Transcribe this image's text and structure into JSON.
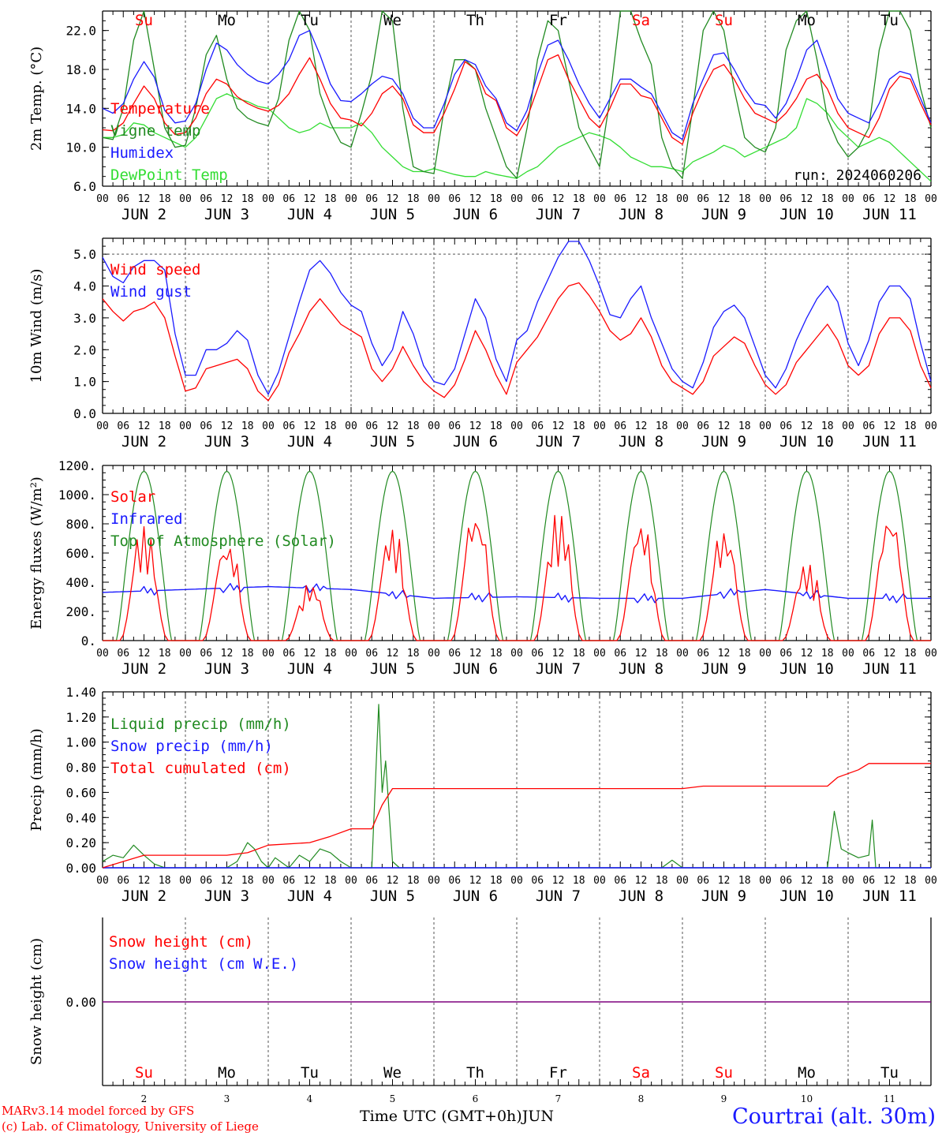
{
  "colors": {
    "red": "#ff0000",
    "green": "#218a21",
    "light_green": "#33dd33",
    "blue": "#1a1aff",
    "purple": "#7f007f",
    "black": "#000000",
    "grid": "#555555"
  },
  "days": [
    {
      "date": "2",
      "dow": "Su",
      "dow_color": "red"
    },
    {
      "date": "3",
      "dow": "Mo",
      "dow_color": "black"
    },
    {
      "date": "4",
      "dow": "Tu",
      "dow_color": "black"
    },
    {
      "date": "5",
      "dow": "We",
      "dow_color": "black"
    },
    {
      "date": "6",
      "dow": "Th",
      "dow_color": "black"
    },
    {
      "date": "7",
      "dow": "Fr",
      "dow_color": "black"
    },
    {
      "date": "8",
      "dow": "Sa",
      "dow_color": "red"
    },
    {
      "date": "9",
      "dow": "Su",
      "dow_color": "red"
    },
    {
      "date": "10",
      "dow": "Mo",
      "dow_color": "black"
    },
    {
      "date": "11",
      "dow": "Tu",
      "dow_color": "black"
    }
  ],
  "month": "JUN",
  "hour_ticks": [
    "00",
    "06",
    "12",
    "18"
  ],
  "footer": {
    "model_line": "MARv3.14 model forced by GFS",
    "credit_line": "(c) Lab. of Climatology, University of Liege",
    "time_axis": "Time UTC (GMT+0h)",
    "month_label": "JUN",
    "station": "Courtrai (alt. 30m)"
  },
  "chart_data": [
    {
      "type": "line",
      "name": "temperature",
      "ylabel": "2m Temp. (°C)",
      "ylim": [
        6,
        24
      ],
      "yticks": [
        "6.0",
        "10.0",
        "14.0",
        "18.0",
        "22.0"
      ],
      "ytick_values": [
        6,
        10,
        14,
        18,
        22
      ],
      "run_label": "run: 2024060206",
      "x_hours": [
        0,
        3,
        6,
        9,
        12,
        15,
        18,
        21,
        24,
        27,
        30,
        33,
        36,
        39,
        42,
        45,
        48,
        51,
        54,
        57,
        60,
        63,
        66,
        69,
        72,
        75,
        78,
        81,
        84,
        87,
        90,
        93,
        96,
        99,
        102,
        105,
        108,
        111,
        114,
        117,
        120,
        123,
        126,
        129,
        132,
        135,
        138,
        141,
        144,
        147,
        150,
        153,
        156,
        159,
        162,
        165,
        168,
        171,
        174,
        177,
        180,
        183,
        186,
        189,
        192,
        195,
        198,
        201,
        204,
        207,
        210,
        213,
        216,
        219,
        222,
        225,
        228,
        231,
        234,
        237,
        240
      ],
      "series": [
        {
          "name": "Temperature",
          "color": "red",
          "values": [
            11.8,
            11.7,
            12.5,
            14.5,
            16.3,
            15.0,
            12.5,
            11.3,
            11.5,
            13.0,
            15.5,
            17.0,
            16.5,
            15.2,
            14.5,
            14.0,
            13.7,
            14.3,
            15.5,
            17.5,
            19.2,
            17.0,
            14.5,
            13.0,
            12.8,
            12.2,
            13.5,
            15.5,
            16.3,
            15.0,
            12.3,
            11.5,
            11.5,
            13.5,
            16.0,
            18.8,
            18.0,
            15.5,
            14.8,
            12.0,
            11.2,
            13.0,
            16.0,
            19.0,
            19.5,
            17.0,
            15.0,
            13.0,
            12.0,
            14.0,
            16.5,
            16.5,
            15.3,
            15.0,
            13.0,
            11.0,
            10.3,
            13.5,
            16.0,
            18.0,
            18.5,
            17.0,
            15.0,
            13.5,
            13.0,
            12.5,
            13.5,
            15.0,
            17.0,
            17.5,
            16.0,
            13.5,
            12.0,
            11.5,
            11.0,
            13.0,
            16.0,
            17.3,
            17.0,
            14.5,
            12.3
          ]
        },
        {
          "name": "Vigne temp",
          "color": "green",
          "values": [
            11.0,
            10.8,
            14.0,
            21.0,
            24.0,
            18.0,
            12.0,
            10.0,
            10.2,
            14.0,
            19.5,
            21.5,
            17.0,
            14.0,
            13.0,
            12.5,
            12.2,
            15.0,
            21.0,
            24.0,
            22.0,
            15.5,
            12.5,
            10.5,
            10.0,
            13.5,
            17.5,
            24.0,
            23.0,
            14.0,
            8.0,
            7.5,
            7.3,
            14.0,
            19.0,
            19.0,
            18.0,
            14.0,
            11.0,
            8.0,
            6.8,
            12.0,
            19.0,
            23.0,
            22.0,
            17.0,
            12.0,
            10.0,
            8.0,
            15.0,
            24.0,
            24.0,
            21.0,
            18.5,
            11.0,
            8.0,
            6.8,
            14.0,
            22.0,
            24.0,
            22.0,
            16.0,
            11.0,
            10.0,
            9.5,
            12.0,
            20.0,
            23.0,
            24.0,
            19.0,
            13.0,
            10.5,
            9.0,
            10.0,
            12.0,
            20.0,
            24.0,
            24.0,
            22.0,
            16.0,
            12.0
          ]
        },
        {
          "name": "Humidex",
          "color": "blue",
          "values": [
            14.0,
            13.5,
            14.5,
            17.0,
            18.8,
            17.2,
            13.8,
            12.5,
            12.7,
            14.5,
            18.0,
            20.7,
            20.0,
            18.5,
            17.5,
            16.8,
            16.5,
            17.5,
            19.0,
            21.5,
            22.0,
            19.5,
            16.5,
            14.8,
            14.7,
            15.5,
            16.5,
            17.3,
            17.0,
            15.5,
            13.0,
            12.0,
            12.0,
            14.5,
            17.5,
            19.0,
            18.5,
            16.3,
            15.0,
            12.5,
            11.7,
            13.8,
            17.5,
            20.5,
            21.0,
            19.0,
            16.5,
            14.5,
            13.0,
            15.0,
            17.0,
            17.0,
            16.2,
            15.5,
            13.5,
            11.5,
            10.8,
            14.5,
            17.0,
            19.5,
            19.7,
            18.0,
            16.0,
            14.5,
            14.3,
            13.0,
            14.5,
            17.0,
            20.0,
            21.0,
            18.0,
            15.0,
            13.5,
            13.0,
            12.5,
            14.5,
            17.0,
            17.8,
            17.5,
            15.0,
            12.5
          ]
        },
        {
          "name": "DewPoint Temp",
          "color": "light_green",
          "values": [
            11.0,
            11.0,
            11.3,
            12.5,
            12.3,
            11.5,
            11.0,
            10.5,
            10.0,
            11.0,
            13.0,
            15.0,
            15.5,
            15.0,
            14.7,
            14.2,
            14.0,
            13.0,
            12.0,
            11.5,
            11.8,
            12.5,
            12.0,
            12.0,
            12.0,
            12.5,
            11.5,
            10.0,
            9.0,
            8.0,
            7.5,
            7.5,
            7.8,
            7.5,
            7.2,
            7.0,
            7.0,
            7.5,
            7.2,
            7.0,
            6.8,
            7.5,
            8.0,
            9.0,
            10.0,
            10.5,
            11.0,
            11.5,
            11.2,
            10.8,
            10.0,
            9.0,
            8.5,
            8.0,
            8.0,
            7.8,
            7.5,
            8.5,
            9.0,
            9.5,
            10.2,
            9.8,
            9.0,
            9.5,
            10.0,
            10.5,
            11.0,
            12.0,
            15.0,
            14.5,
            13.5,
            12.0,
            11.0,
            10.0,
            10.5,
            11.0,
            10.5,
            9.5,
            8.5,
            7.5,
            6.5
          ]
        }
      ]
    },
    {
      "type": "line",
      "name": "wind",
      "ylabel": "10m Wind (m/s)",
      "ylim": [
        0,
        5.5
      ],
      "yticks": [
        "0.0",
        "1.0",
        "2.0",
        "3.0",
        "4.0",
        "5.0"
      ],
      "ytick_values": [
        0,
        1,
        2,
        3,
        4,
        5
      ],
      "reference_line": 5.0,
      "x_hours": [
        0,
        3,
        6,
        9,
        12,
        15,
        18,
        21,
        24,
        27,
        30,
        33,
        36,
        39,
        42,
        45,
        48,
        51,
        54,
        57,
        60,
        63,
        66,
        69,
        72,
        75,
        78,
        81,
        84,
        87,
        90,
        93,
        96,
        99,
        102,
        105,
        108,
        111,
        114,
        117,
        120,
        123,
        126,
        129,
        132,
        135,
        138,
        141,
        144,
        147,
        150,
        153,
        156,
        159,
        162,
        165,
        168,
        171,
        174,
        177,
        180,
        183,
        186,
        189,
        192,
        195,
        198,
        201,
        204,
        207,
        210,
        213,
        216,
        219,
        222,
        225,
        228,
        231,
        234,
        237,
        240
      ],
      "series": [
        {
          "name": "Wind speed",
          "color": "red",
          "values": [
            3.6,
            3.2,
            2.9,
            3.2,
            3.3,
            3.5,
            3.0,
            1.8,
            0.7,
            0.8,
            1.4,
            1.5,
            1.6,
            1.7,
            1.4,
            0.7,
            0.4,
            0.9,
            1.9,
            2.5,
            3.2,
            3.6,
            3.2,
            2.8,
            2.6,
            2.4,
            1.4,
            1.0,
            1.4,
            2.1,
            1.5,
            1.0,
            0.7,
            0.5,
            0.9,
            1.7,
            2.6,
            2.0,
            1.2,
            0.6,
            1.6,
            2.0,
            2.4,
            3.0,
            3.6,
            4.0,
            4.1,
            3.7,
            3.2,
            2.6,
            2.3,
            2.5,
            3.0,
            2.4,
            1.5,
            1.0,
            0.8,
            0.6,
            1.0,
            1.8,
            2.1,
            2.4,
            2.2,
            1.5,
            0.9,
            0.6,
            0.9,
            1.6,
            2.0,
            2.4,
            2.8,
            2.3,
            1.5,
            1.2,
            1.5,
            2.5,
            3.0,
            3.0,
            2.6,
            1.5,
            0.8
          ]
        },
        {
          "name": "Wind gust",
          "color": "blue",
          "values": [
            4.9,
            4.3,
            4.1,
            4.6,
            4.8,
            4.8,
            4.5,
            2.5,
            1.2,
            1.2,
            2.0,
            2.0,
            2.2,
            2.6,
            2.3,
            1.2,
            0.6,
            1.3,
            2.4,
            3.5,
            4.5,
            4.8,
            4.4,
            3.8,
            3.4,
            3.2,
            2.2,
            1.5,
            2.0,
            3.2,
            2.5,
            1.5,
            1.0,
            0.9,
            1.4,
            2.5,
            3.6,
            3.0,
            1.7,
            1.0,
            2.3,
            2.6,
            3.5,
            4.2,
            4.9,
            5.4,
            5.4,
            4.8,
            4.0,
            3.1,
            3.0,
            3.6,
            4.0,
            3.0,
            2.2,
            1.4,
            1.0,
            0.8,
            1.6,
            2.7,
            3.2,
            3.4,
            3.0,
            2.1,
            1.2,
            0.8,
            1.4,
            2.3,
            3.0,
            3.6,
            4.0,
            3.5,
            2.2,
            1.5,
            2.3,
            3.5,
            4.0,
            4.0,
            3.6,
            2.2,
            1.0
          ]
        }
      ]
    },
    {
      "type": "line",
      "name": "energy",
      "ylabel": "Energy fluxes (W/m²)",
      "ylim": [
        0,
        1200
      ],
      "yticks": [
        "0.",
        "200.",
        "400.",
        "600.",
        "800.",
        "1000.",
        "1200."
      ],
      "ytick_values": [
        0,
        200,
        400,
        600,
        800,
        1000,
        1200
      ],
      "solar_peaks_by_day": [
        780,
        680,
        390,
        770,
        890,
        880,
        820,
        760,
        530,
        880
      ],
      "toa_peak": 1160,
      "infrared_by_day": [
        330,
        350,
        370,
        350,
        290,
        300,
        290,
        290,
        350,
        290
      ],
      "series_names": [
        "Solar",
        "Infrared",
        "Top of Atmosphere (Solar)"
      ],
      "series_colors": [
        "red",
        "blue",
        "green"
      ]
    },
    {
      "type": "line",
      "name": "precip",
      "ylabel": "Precip (mm/h)",
      "ylim": [
        0,
        1.4
      ],
      "yticks": [
        "0.00",
        "0.20",
        "0.40",
        "0.60",
        "0.80",
        "1.00",
        "1.20",
        "1.40"
      ],
      "ytick_values": [
        0,
        0.2,
        0.4,
        0.6,
        0.8,
        1.0,
        1.2,
        1.4
      ],
      "liquid_points": [
        [
          0,
          0.05
        ],
        [
          3,
          0.1
        ],
        [
          6,
          0.08
        ],
        [
          9,
          0.18
        ],
        [
          12,
          0.1
        ],
        [
          15,
          0.03
        ],
        [
          18,
          0.0
        ],
        [
          36,
          0.0
        ],
        [
          39,
          0.05
        ],
        [
          42,
          0.2
        ],
        [
          44,
          0.15
        ],
        [
          46,
          0.05
        ],
        [
          48,
          0.0
        ],
        [
          50,
          0.08
        ],
        [
          54,
          0.0
        ],
        [
          57,
          0.1
        ],
        [
          60,
          0.05
        ],
        [
          63,
          0.15
        ],
        [
          66,
          0.12
        ],
        [
          69,
          0.05
        ],
        [
          72,
          0.0
        ],
        [
          78,
          0.0
        ],
        [
          80,
          1.3
        ],
        [
          81,
          0.6
        ],
        [
          82,
          0.85
        ],
        [
          84,
          0.05
        ],
        [
          86,
          0.0
        ],
        [
          162,
          0.0
        ],
        [
          165,
          0.06
        ],
        [
          168,
          0.0
        ],
        [
          210,
          0.0
        ],
        [
          212,
          0.45
        ],
        [
          214,
          0.15
        ],
        [
          216,
          0.12
        ],
        [
          219,
          0.08
        ],
        [
          222,
          0.1
        ],
        [
          223,
          0.38
        ],
        [
          224,
          0.0
        ],
        [
          240,
          0.0
        ]
      ],
      "cumulated_points": [
        [
          0,
          0.0
        ],
        [
          6,
          0.05
        ],
        [
          12,
          0.1
        ],
        [
          36,
          0.1
        ],
        [
          42,
          0.12
        ],
        [
          48,
          0.18
        ],
        [
          60,
          0.2
        ],
        [
          66,
          0.25
        ],
        [
          72,
          0.31
        ],
        [
          78,
          0.31
        ],
        [
          81,
          0.5
        ],
        [
          84,
          0.63
        ],
        [
          168,
          0.63
        ],
        [
          174,
          0.65
        ],
        [
          210,
          0.65
        ],
        [
          213,
          0.72
        ],
        [
          219,
          0.78
        ],
        [
          222,
          0.83
        ],
        [
          240,
          0.83
        ]
      ],
      "series_names": [
        "Liquid precip (mm/h)",
        "Snow precip (mm/h)",
        "Total cumulated (cm)"
      ],
      "series_colors": [
        "green",
        "blue",
        "red"
      ]
    },
    {
      "type": "line",
      "name": "snow",
      "ylabel": "Snow height (cm)",
      "yticks": [
        "0.00"
      ],
      "value": 0.0,
      "series_names": [
        "Snow height (cm)",
        "Snow height (cm W.E.)"
      ],
      "series_colors": [
        "red",
        "blue"
      ]
    }
  ]
}
